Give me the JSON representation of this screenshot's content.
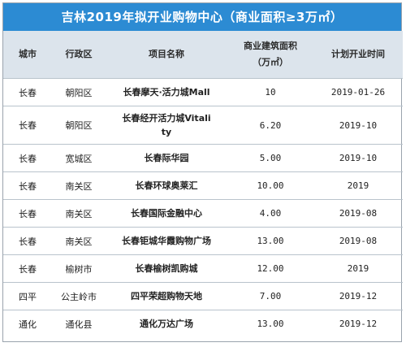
{
  "title": "吉林2019年拟开业购物中心（商业面积≥3万㎡）",
  "columns": {
    "city": "城市",
    "district": "行政区",
    "project": "项目名称",
    "area_line1": "商业建筑面积",
    "area_line2": "（万㎡）",
    "opening": "计划开业时间"
  },
  "rows": [
    {
      "city": "长春",
      "district": "朝阳区",
      "project": "长春摩天·活力城Mall",
      "area": "10",
      "opening": "2019-01-26"
    },
    {
      "city": "长春",
      "district": "朝阳区",
      "project_line1": "长春经开活力城Vitali",
      "project_line2": "ty",
      "area": "6.20",
      "opening": "2019-10"
    },
    {
      "city": "长春",
      "district": "宽城区",
      "project": "长春际华园",
      "area": "5.00",
      "opening": "2019-10"
    },
    {
      "city": "长春",
      "district": "南关区",
      "project": "长春环球奥莱汇",
      "area": "10.00",
      "opening": "2019"
    },
    {
      "city": "长春",
      "district": "南关区",
      "project": "长春国际金融中心",
      "area": "4.00",
      "opening": "2019-08"
    },
    {
      "city": "长春",
      "district": "南关区",
      "project": "长春钜城华霞购物广场",
      "area": "13.00",
      "opening": "2019-08"
    },
    {
      "city": "长春",
      "district": "榆树市",
      "project": "长春榆树凯购城",
      "area": "12.00",
      "opening": "2019"
    },
    {
      "city": "四平",
      "district": "公主岭市",
      "project": "四平荣超购物天地",
      "area": "7.00",
      "opening": "2019-12"
    },
    {
      "city": "通化",
      "district": "通化县",
      "project": "通化万达广场",
      "area": "13.00",
      "opening": "2019-12"
    }
  ]
}
